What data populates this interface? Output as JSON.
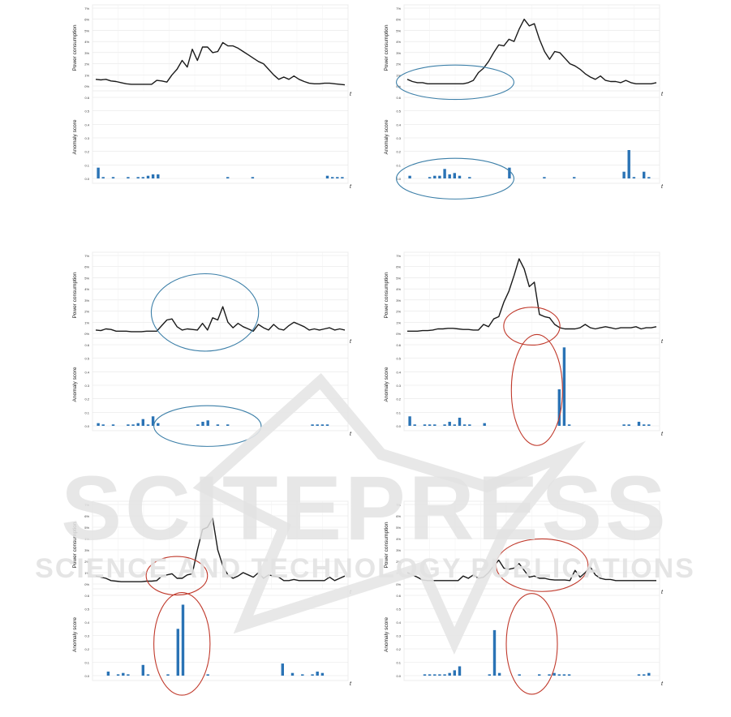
{
  "colors": {
    "line": "#1a1a1a",
    "bar": "#2a73b5",
    "grid": "#e6e6e6",
    "axis_text": "#333333",
    "ellipse_blue": "#3c7fa8",
    "ellipse_red": "#c0392b",
    "watermark": "#e3e3e3"
  },
  "watermark": {
    "main": "SCITEPRESS",
    "sub": "SCIENCE AND TECHNOLOGY PUBLICATIONS"
  },
  "chart_data": [
    {
      "type": "line+bar",
      "line_ylabel": "Power consumption",
      "bar_ylabel": "Anomaly score",
      "t_label": "t",
      "line_yticks": [
        "0%",
        "1%",
        "2%",
        "3%",
        "4%",
        "5%",
        "6%",
        "7%"
      ],
      "bar_yticks": [
        "0.0",
        "0.1",
        "0.2",
        "0.3",
        "0.4",
        "0.5",
        "0.6"
      ],
      "power": [
        0.6,
        0.55,
        0.6,
        0.45,
        0.4,
        0.3,
        0.2,
        0.15,
        0.15,
        0.15,
        0.15,
        0.15,
        0.5,
        0.45,
        0.35,
        1.0,
        1.5,
        2.3,
        1.7,
        3.3,
        2.3,
        3.5,
        3.5,
        3.0,
        3.1,
        3.9,
        3.6,
        3.6,
        3.4,
        3.1,
        2.8,
        2.5,
        2.2,
        2.0,
        1.5,
        1.0,
        0.6,
        0.8,
        0.6,
        0.9,
        0.6,
        0.4,
        0.25,
        0.2,
        0.2,
        0.25,
        0.25,
        0.2,
        0.15,
        0.1
      ],
      "anomaly": [
        0.08,
        0.01,
        0.0,
        0.01,
        0.0,
        0.0,
        0.01,
        0.0,
        0.01,
        0.01,
        0.02,
        0.03,
        0.03,
        0.0,
        0.0,
        0.0,
        0.0,
        0.0,
        0.0,
        0.0,
        0.0,
        0.0,
        0.0,
        0.0,
        0.0,
        0.0,
        0.01,
        0.0,
        0.0,
        0.0,
        0.0,
        0.01,
        0.0,
        0.0,
        0.0,
        0.0,
        0.0,
        0.0,
        0.0,
        0.0,
        0.0,
        0.0,
        0.0,
        0.0,
        0.0,
        0.0,
        0.02,
        0.01,
        0.01,
        0.01
      ],
      "ellipses": []
    },
    {
      "type": "line+bar",
      "line_ylabel": "Power consumption",
      "bar_ylabel": "Anomaly score",
      "t_label": "t",
      "line_yticks": [
        "0%",
        "1%",
        "2%",
        "3%",
        "4%",
        "5%",
        "6%",
        "7%"
      ],
      "bar_yticks": [
        "0.0",
        "0.1",
        "0.2",
        "0.3",
        "0.4",
        "0.5",
        "0.6"
      ],
      "power": [
        0.6,
        0.4,
        0.3,
        0.3,
        0.2,
        0.2,
        0.2,
        0.2,
        0.2,
        0.2,
        0.2,
        0.2,
        0.3,
        0.5,
        1.2,
        1.6,
        2.2,
        3.0,
        3.7,
        3.6,
        4.2,
        4.0,
        5.1,
        6.0,
        5.4,
        5.6,
        4.2,
        3.1,
        2.4,
        3.1,
        3.0,
        2.5,
        2.0,
        1.8,
        1.5,
        1.1,
        0.8,
        0.6,
        0.9,
        0.5,
        0.4,
        0.4,
        0.3,
        0.5,
        0.3,
        0.2,
        0.2,
        0.2,
        0.2,
        0.3
      ],
      "anomaly": [
        0.02,
        0.0,
        0.0,
        0.0,
        0.01,
        0.02,
        0.02,
        0.07,
        0.03,
        0.04,
        0.02,
        0.0,
        0.01,
        0.0,
        0.0,
        0.0,
        0.0,
        0.0,
        0.0,
        0.0,
        0.08,
        0.0,
        0.0,
        0.0,
        0.0,
        0.0,
        0.0,
        0.01,
        0.0,
        0.0,
        0.0,
        0.0,
        0.0,
        0.01,
        0.0,
        0.0,
        0.0,
        0.0,
        0.0,
        0.0,
        0.0,
        0.0,
        0.0,
        0.05,
        0.21,
        0.01,
        0.0,
        0.05,
        0.01,
        0.0
      ],
      "ellipses": [
        {
          "panel": "line",
          "cx": 0.2,
          "cy": 0.9,
          "rx": 0.23,
          "ry": 0.2,
          "color": "blue"
        },
        {
          "panel": "bar",
          "cx": 0.2,
          "cy": 0.95,
          "rx": 0.23,
          "ry": 0.22,
          "color": "blue"
        }
      ]
    },
    {
      "type": "line+bar",
      "line_ylabel": "Power consumption",
      "bar_ylabel": "Anomaly score",
      "t_label": "t",
      "line_yticks": [
        "0%",
        "1%",
        "2%",
        "3%",
        "4%",
        "5%",
        "6%",
        "7%"
      ],
      "bar_yticks": [
        "0.0",
        "0.1",
        "0.2",
        "0.3",
        "0.4",
        "0.5",
        "0.6"
      ],
      "power": [
        0.3,
        0.25,
        0.4,
        0.35,
        0.2,
        0.2,
        0.2,
        0.15,
        0.15,
        0.15,
        0.2,
        0.2,
        0.2,
        0.7,
        1.2,
        1.3,
        0.6,
        0.3,
        0.4,
        0.35,
        0.3,
        0.9,
        0.3,
        1.4,
        1.2,
        2.4,
        1.0,
        0.5,
        0.9,
        0.6,
        0.4,
        0.2,
        0.8,
        0.5,
        0.3,
        0.8,
        0.4,
        0.3,
        0.7,
        1.0,
        0.8,
        0.6,
        0.3,
        0.4,
        0.3,
        0.4,
        0.5,
        0.3,
        0.4,
        0.3
      ],
      "anomaly": [
        0.02,
        0.01,
        0.0,
        0.01,
        0.0,
        0.0,
        0.01,
        0.01,
        0.02,
        0.05,
        0.01,
        0.07,
        0.02,
        0.0,
        0.0,
        0.0,
        0.0,
        0.0,
        0.0,
        0.0,
        0.01,
        0.03,
        0.04,
        0.0,
        0.01,
        0.0,
        0.01,
        0.0,
        0.0,
        0.0,
        0.0,
        0.0,
        0.0,
        0.0,
        0.0,
        0.0,
        0.0,
        0.0,
        0.0,
        0.0,
        0.0,
        0.0,
        0.0,
        0.01,
        0.01,
        0.01,
        0.01,
        0.0,
        0.0,
        0.0
      ],
      "ellipses": [
        {
          "panel": "line",
          "cx": 0.44,
          "cy": 0.7,
          "rx": 0.21,
          "ry": 0.45,
          "color": "blue"
        },
        {
          "panel": "bar",
          "cx": 0.45,
          "cy": 0.95,
          "rx": 0.21,
          "ry": 0.22,
          "color": "blue"
        }
      ]
    },
    {
      "type": "line+bar",
      "line_ylabel": "Power consumption",
      "bar_ylabel": "Anomaly score",
      "t_label": "t",
      "line_yticks": [
        "0%",
        "1%",
        "2%",
        "3%",
        "4%",
        "5%",
        "6%",
        "7%"
      ],
      "bar_yticks": [
        "0.0",
        "0.1",
        "0.2",
        "0.3",
        "0.4",
        "0.5",
        "0.6"
      ],
      "power": [
        0.2,
        0.2,
        0.2,
        0.25,
        0.25,
        0.3,
        0.4,
        0.4,
        0.45,
        0.45,
        0.4,
        0.35,
        0.35,
        0.3,
        0.3,
        0.8,
        0.6,
        1.3,
        1.5,
        2.8,
        3.8,
        5.2,
        6.7,
        5.8,
        4.2,
        4.6,
        1.7,
        1.5,
        1.4,
        0.8,
        0.5,
        0.4,
        0.4,
        0.4,
        0.5,
        0.8,
        0.5,
        0.4,
        0.5,
        0.6,
        0.5,
        0.4,
        0.5,
        0.5,
        0.5,
        0.6,
        0.4,
        0.5,
        0.5,
        0.6
      ],
      "anomaly": [
        0.07,
        0.01,
        0.0,
        0.01,
        0.01,
        0.01,
        0.0,
        0.01,
        0.03,
        0.01,
        0.06,
        0.01,
        0.01,
        0.0,
        0.0,
        0.02,
        0.0,
        0.0,
        0.0,
        0.0,
        0.0,
        0.0,
        0.0,
        0.0,
        0.0,
        0.0,
        0.0,
        0.0,
        0.0,
        0.0,
        0.27,
        0.58,
        0.01,
        0.0,
        0.0,
        0.0,
        0.0,
        0.0,
        0.0,
        0.0,
        0.0,
        0.0,
        0.0,
        0.01,
        0.01,
        0.0,
        0.03,
        0.01,
        0.01,
        0.0
      ],
      "ellipses": [
        {
          "panel": "line",
          "cx": 0.5,
          "cy": 0.86,
          "rx": 0.11,
          "ry": 0.22,
          "color": "red"
        },
        {
          "panel": "bar",
          "cx": 0.52,
          "cy": 0.56,
          "rx": 0.1,
          "ry": 0.6,
          "color": "red"
        }
      ]
    },
    {
      "type": "line+bar",
      "line_ylabel": "Power consumption",
      "bar_ylabel": "Anomaly score",
      "t_label": "t",
      "line_yticks": [
        "0%",
        "1%",
        "2%",
        "3%",
        "4%",
        "5%",
        "6%",
        "7%"
      ],
      "bar_yticks": [
        "0.0",
        "0.1",
        "0.2",
        "0.3",
        "0.4",
        "0.5",
        "0.6"
      ],
      "power": [
        0.7,
        0.6,
        0.5,
        0.3,
        0.25,
        0.2,
        0.2,
        0.2,
        0.2,
        0.2,
        0.25,
        0.25,
        0.3,
        0.7,
        0.8,
        0.9,
        0.5,
        0.5,
        0.8,
        0.9,
        3.0,
        4.8,
        5.0,
        5.8,
        3.0,
        1.6,
        0.8,
        0.5,
        0.7,
        1.0,
        0.8,
        0.6,
        1.0,
        0.5,
        0.8,
        0.7,
        0.6,
        0.3,
        0.3,
        0.4,
        0.3,
        0.3,
        0.3,
        0.3,
        0.3,
        0.3,
        0.6,
        0.3,
        0.5,
        0.7
      ],
      "anomaly": [
        0.0,
        0.0,
        0.03,
        0.0,
        0.01,
        0.02,
        0.01,
        0.0,
        0.0,
        0.08,
        0.01,
        0.0,
        0.0,
        0.0,
        0.01,
        0.0,
        0.35,
        0.53,
        0.0,
        0.0,
        0.0,
        0.0,
        0.01,
        0.0,
        0.0,
        0.0,
        0.0,
        0.0,
        0.0,
        0.0,
        0.0,
        0.0,
        0.0,
        0.0,
        0.0,
        0.0,
        0.0,
        0.09,
        0.0,
        0.02,
        0.0,
        0.01,
        0.0,
        0.01,
        0.03,
        0.02,
        0.0,
        0.0,
        0.0,
        0.0
      ],
      "ellipses": [
        {
          "panel": "line",
          "cx": 0.33,
          "cy": 0.85,
          "rx": 0.12,
          "ry": 0.22,
          "color": "red"
        },
        {
          "panel": "bar",
          "cx": 0.35,
          "cy": 0.6,
          "rx": 0.11,
          "ry": 0.56,
          "color": "red"
        }
      ]
    },
    {
      "type": "line+bar",
      "line_ylabel": "Power consumption",
      "bar_ylabel": "Anomaly score",
      "t_label": "t",
      "line_yticks": [
        "0%",
        "1%",
        "2%",
        "3%",
        "4%",
        "5%",
        "6%",
        "7%"
      ],
      "bar_yticks": [
        "0.0",
        "0.1",
        "0.2",
        "0.3",
        "0.4",
        "0.5",
        "0.6"
      ],
      "power": [
        1.0,
        0.8,
        0.6,
        0.35,
        0.3,
        0.3,
        0.3,
        0.3,
        0.3,
        0.3,
        0.3,
        0.7,
        0.5,
        0.8,
        0.5,
        0.6,
        1.0,
        1.6,
        2.1,
        1.4,
        1.3,
        1.4,
        1.8,
        1.2,
        0.6,
        0.7,
        0.5,
        0.5,
        0.4,
        0.35,
        0.35,
        0.35,
        0.3,
        1.2,
        0.6,
        1.0,
        1.5,
        0.8,
        0.5,
        0.4,
        0.4,
        0.3,
        0.3,
        0.3,
        0.3,
        0.3,
        0.3,
        0.3,
        0.3,
        0.3
      ],
      "anomaly": [
        0.0,
        0.0,
        0.0,
        0.01,
        0.01,
        0.01,
        0.01,
        0.01,
        0.02,
        0.04,
        0.07,
        0.0,
        0.0,
        0.0,
        0.0,
        0.0,
        0.01,
        0.34,
        0.02,
        0.0,
        0.0,
        0.0,
        0.01,
        0.0,
        0.0,
        0.0,
        0.01,
        0.0,
        0.01,
        0.02,
        0.01,
        0.01,
        0.01,
        0.0,
        0.0,
        0.0,
        0.0,
        0.0,
        0.0,
        0.0,
        0.0,
        0.0,
        0.0,
        0.0,
        0.0,
        0.0,
        0.01,
        0.01,
        0.02,
        0.0
      ],
      "ellipses": [
        {
          "panel": "line",
          "cx": 0.54,
          "cy": 0.73,
          "rx": 0.18,
          "ry": 0.3,
          "color": "red"
        },
        {
          "panel": "bar",
          "cx": 0.5,
          "cy": 0.6,
          "rx": 0.1,
          "ry": 0.55,
          "color": "red"
        }
      ]
    }
  ]
}
